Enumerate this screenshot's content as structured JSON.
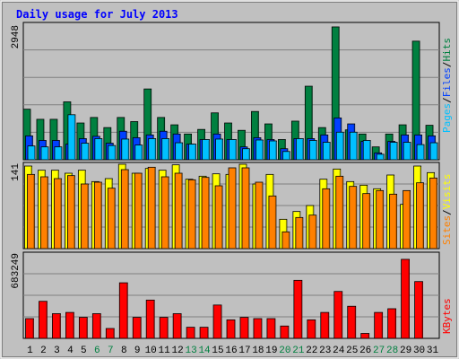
{
  "chart_data": [
    {
      "type": "bar",
      "title": "Daily usage for July 2013",
      "panel": "top",
      "y_max_label": "2948",
      "ylim": [
        0,
        2948
      ],
      "side_label": [
        "Pages",
        "/",
        "Files",
        "/",
        "Hits"
      ],
      "series": [
        {
          "name": "Hits",
          "values": [
            1100,
            880,
            880,
            1260,
            800,
            920,
            700,
            920,
            830,
            1540,
            920,
            760,
            560,
            660,
            1020,
            800,
            640,
            1050,
            780,
            440,
            840,
            1600,
            700,
            2890,
            650,
            560,
            280,
            560,
            760,
            2580,
            750
          ]
        },
        {
          "name": "Files",
          "values": [
            520,
            420,
            420,
            340,
            460,
            510,
            360,
            620,
            480,
            540,
            620,
            560,
            340,
            440,
            560,
            440,
            280,
            480,
            440,
            240,
            460,
            460,
            540,
            910,
            780,
            400,
            150,
            400,
            540,
            540,
            520
          ]
        },
        {
          "name": "Pages",
          "values": [
            300,
            280,
            280,
            980,
            360,
            460,
            310,
            450,
            320,
            460,
            460,
            370,
            340,
            440,
            450,
            440,
            240,
            430,
            410,
            180,
            460,
            420,
            380,
            600,
            600,
            420,
            120,
            380,
            380,
            330,
            370
          ]
        }
      ]
    },
    {
      "type": "bar",
      "panel": "middle",
      "y_max_label": "141",
      "ylim": [
        0,
        141
      ],
      "side_label": [
        "Sites",
        "/",
        "Visits"
      ],
      "series": [
        {
          "name": "Visits",
          "values": [
            138,
            131,
            131,
            126,
            131,
            112,
            117,
            141,
            126,
            134,
            131,
            140,
            116,
            121,
            125,
            124,
            141,
            108,
            124,
            49,
            62,
            72,
            116,
            133,
            112,
            106,
            100,
            123,
            74,
            138,
            127
          ]
        },
        {
          "name": "Sites",
          "values": [
            124,
            120,
            117,
            122,
            108,
            111,
            101,
            132,
            126,
            136,
            120,
            126,
            115,
            119,
            105,
            135,
            135,
            111,
            88,
            28,
            52,
            56,
            100,
            121,
            104,
            92,
            97,
            91,
            97,
            110,
            118
          ]
        }
      ]
    },
    {
      "type": "bar",
      "panel": "bottom",
      "y_max_label": "683249",
      "ylim": [
        0,
        683249
      ],
      "side_label": [
        "KBytes"
      ],
      "series": [
        {
          "name": "KBytes",
          "values": [
            160000,
            300000,
            200000,
            210000,
            170000,
            200000,
            80000,
            450000,
            170000,
            310000,
            170000,
            200000,
            90000,
            90000,
            270000,
            150000,
            170000,
            160000,
            160000,
            100000,
            470000,
            150000,
            210000,
            380000,
            260000,
            40000,
            210000,
            240000,
            640000,
            460000,
            0
          ]
        }
      ],
      "categories": [
        "1",
        "2",
        "3",
        "4",
        "5",
        "6",
        "7",
        "8",
        "9",
        "10",
        "11",
        "12",
        "13",
        "14",
        "15",
        "16",
        "17",
        "18",
        "19",
        "20",
        "21",
        "22",
        "23",
        "24",
        "25",
        "26",
        "27",
        "28",
        "29",
        "30",
        "31"
      ],
      "weekend_days": [
        "6",
        "7",
        "13",
        "14",
        "20",
        "21",
        "27",
        "28"
      ]
    }
  ],
  "colors": {
    "title": "#0000ff",
    "hits": "#008040",
    "files": "#0040ff",
    "pages": "#00c0ff",
    "visits": "#ffff00",
    "sites": "#ff8000",
    "kbytes": "#ff0000",
    "weekend_tick": "#008040",
    "weekday_tick": "#000000",
    "plot_bg": "#c0c0c0",
    "frame_bg": "#c0c0c0"
  }
}
